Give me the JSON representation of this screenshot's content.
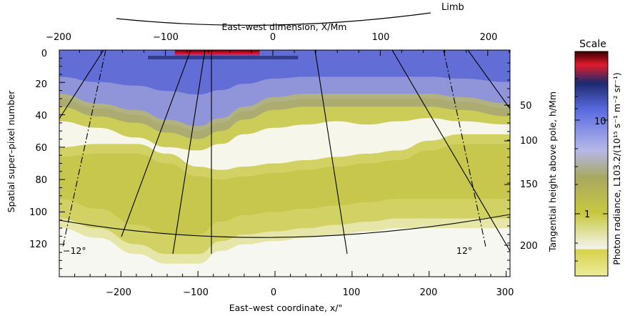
{
  "chart_data": {
    "type": "heatmap",
    "xlabel": "East–west coordinate, x/\"",
    "ylabel": "Spatial super–pixel number",
    "x2label": "East–west dimension, X/Mm",
    "y2label": "Tangential height above pole, h/Mm",
    "xlim": [
      -280,
      305
    ],
    "ylim": [
      140,
      0
    ],
    "x_ticks": [
      "−200",
      "−100",
      "0",
      "100",
      "200",
      "300"
    ],
    "y_ticks": [
      "0",
      "20",
      "40",
      "60",
      "80",
      "100",
      "120"
    ],
    "x2_ticks": [
      "−200",
      "−100",
      "0",
      "100",
      "200"
    ],
    "y2_ticks": [
      "50",
      "100",
      "150",
      "200"
    ],
    "colorbar": {
      "title": "Scale",
      "label": "Photon radiance, L103.2/(10¹⁵ s⁻¹ m⁻² sr⁻¹)",
      "ticks": [
        "10",
        "1"
      ],
      "scale": "log"
    },
    "annotations": [
      "Limb",
      "−12°",
      "12°"
    ],
    "band_boundaries": {
      "x": [
        -280,
        -230,
        -180,
        -140,
        -100,
        -70,
        -40,
        0,
        40,
        80,
        120,
        160,
        200,
        240,
        305
      ],
      "blue_bottom": [
        30,
        36,
        40,
        46,
        50,
        45,
        38,
        32,
        30,
        30,
        30,
        30,
        30,
        32,
        36
      ],
      "white_top": [
        44,
        48,
        54,
        60,
        62,
        58,
        52,
        48,
        46,
        44,
        46,
        44,
        42,
        44,
        46
      ],
      "lower_band_top": [
        60,
        58,
        58,
        64,
        72,
        74,
        72,
        70,
        68,
        66,
        64,
        62,
        56,
        52,
        52
      ],
      "lower_band_bottom": [
        104,
        110,
        120,
        126,
        126,
        118,
        114,
        112,
        110,
        108,
        106,
        104,
        104,
        104,
        104
      ]
    }
  }
}
